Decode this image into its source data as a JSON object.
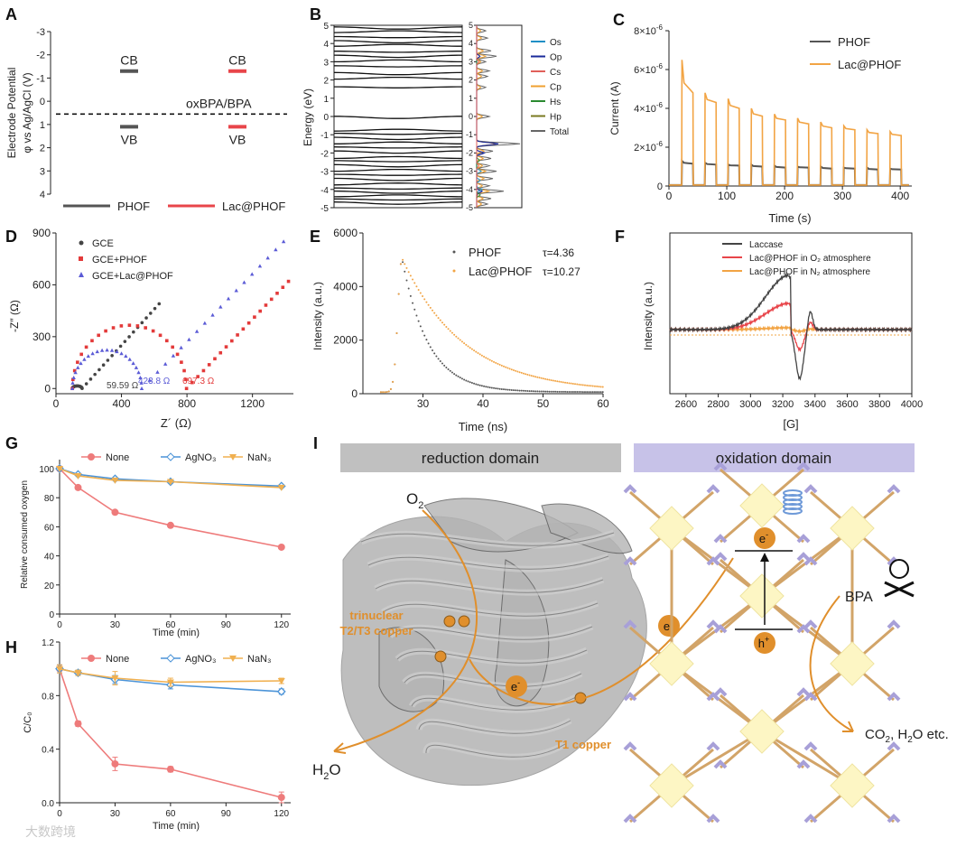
{
  "colors": {
    "phof": "#555555",
    "lac_phof": "#e8454a",
    "lac_orange": "#f2a444",
    "gce_blue": "#5b5bd6",
    "gce_black": "#444444",
    "gce_red": "#e33a3a",
    "os": "#1f8fc6",
    "op": "#1a2a9a",
    "cs": "#e0605a",
    "cp": "#f0a030",
    "hs": "#2a8a30",
    "hp": "#7a7a20",
    "total": "#666666",
    "g_none": "#ee7b7b",
    "g_agno3": "#4c94d8",
    "g_nan3": "#f0b050",
    "reduction_bar": "#c0c0c0",
    "oxidation_bar": "#c7c2e8",
    "copper": "#e08f2c",
    "electron": "#e08f2c",
    "node_fill": "#fdf6c4",
    "linker": "#d2a468",
    "cap": "#a8a0d8"
  },
  "chart_data": [
    {
      "panel": "A",
      "type": "scatter",
      "ylabel": "Electrode Potential φ vs Ag/AgCl (V)",
      "ylabel_line1": "Electrode Potential",
      "ylabel_line2": "φ vs Ag/AgCl (V)",
      "ylim": [
        4,
        -3
      ],
      "yticks": [
        "-3",
        "-2",
        "-1",
        "0",
        "1",
        "2",
        "3",
        "4"
      ],
      "series": [
        {
          "name": "PHOF",
          "cb": -1.3,
          "vb": 1.1
        },
        {
          "name": "Lac@PHOF",
          "cb": -1.3,
          "vb": 1.1
        }
      ],
      "cb_label": "CB",
      "vb_label": "VB",
      "reference_label": "oxBPA/BPA",
      "reference_value": 0.55,
      "legend": [
        "PHOF",
        "Lac@PHOF"
      ]
    },
    {
      "panel": "B",
      "type": "line",
      "ylabel": "Energy (eV)",
      "ylim": [
        -5,
        5
      ],
      "yticks": [
        "5",
        "4",
        "3",
        "2",
        "1",
        "0",
        "-1",
        "-2",
        "-3",
        "-4",
        "-5"
      ],
      "bands": [
        4.85,
        4.65,
        4.35,
        4.1,
        3.9,
        3.55,
        3.3,
        3.05,
        2.75,
        2.35,
        2.1,
        1.6,
        -0.05,
        -0.75,
        -0.95,
        -1.2,
        -1.45,
        -1.7,
        -1.95,
        -2.25,
        -2.45,
        -2.7,
        -2.95,
        -3.2,
        -3.45,
        -3.7,
        -3.95,
        -4.15,
        -4.35,
        -4.55,
        -4.75
      ],
      "dos_legend": [
        "Os",
        "Op",
        "Cs",
        "Cp",
        "Hs",
        "Hp",
        "Total"
      ],
      "dos_tick_labels": [
        "5",
        "4",
        "3",
        "2",
        "1",
        "0",
        "-1",
        "-2",
        "-3",
        "-4",
        "-5"
      ]
    },
    {
      "panel": "C",
      "type": "line",
      "xlabel": "Time (s)",
      "ylabel": "Current (A)",
      "xlim": [
        0,
        420
      ],
      "ylim": [
        0,
        8e-06
      ],
      "xticks": [
        "0",
        "100",
        "200",
        "300",
        "400"
      ],
      "ytick_mantissa": [
        "0",
        "2×10",
        "4×10",
        "6×10",
        "8×10"
      ],
      "ytick_exp": [
        "-6"
      ],
      "on_times": [
        22,
        62,
        102,
        142,
        182,
        222,
        262,
        302,
        342,
        382
      ],
      "on_duration": 20,
      "series": [
        {
          "name": "PHOF",
          "peaks": [
            1.3e-06,
            1.2e-06,
            1.1e-06,
            1.1e-06,
            1.05e-06,
            1e-06,
            1e-06,
            9.5e-07,
            9.5e-07,
            9e-07
          ],
          "plateau": [
            1.15e-06,
            1.1e-06,
            1.05e-06,
            1e-06,
            9.5e-07,
            9.5e-07,
            9e-07,
            9e-07,
            8.5e-07,
            8.5e-07
          ]
        },
        {
          "name": "Lac@PHOF",
          "peaks": [
            6.5e-06,
            4.8e-06,
            4.5e-06,
            4e-06,
            3.7e-06,
            3.5e-06,
            3.3e-06,
            3.1e-06,
            2.9e-06,
            2.8e-06
          ],
          "plateau": [
            4.8e-06,
            4.3e-06,
            4e-06,
            3.6e-06,
            3.4e-06,
            3.2e-06,
            3e-06,
            2.9e-06,
            2.7e-06,
            2.6e-06
          ]
        }
      ]
    },
    {
      "panel": "D",
      "type": "scatter",
      "xlabel": "Z´ (Ω)",
      "ylabel": "-Z″ (Ω)",
      "xlim": [
        0,
        1450
      ],
      "ylim": [
        -30,
        900
      ],
      "xticks": [
        "0",
        "400",
        "800",
        "1200"
      ],
      "yticks": [
        "0",
        "300",
        "600",
        "900"
      ],
      "series": [
        {
          "name": "GCE",
          "r_ct": 59.59,
          "x0": 100,
          "tail_to": [
            630,
            490
          ]
        },
        {
          "name": "GCE+PHOF",
          "r_ct": 697.3,
          "x0": 100,
          "tail_to": [
            1420,
            620
          ]
        },
        {
          "name": "GCE+Lac@PHOF",
          "r_ct": 423.8,
          "x0": 100,
          "tail_to": [
            1390,
            850
          ]
        }
      ],
      "annotations": [
        "59.59 Ω",
        "423.8 Ω",
        "697.3 Ω"
      ]
    },
    {
      "panel": "E",
      "type": "scatter",
      "xlabel": "Time (ns)",
      "ylabel": "Intensity (a.u.)",
      "xlim": [
        20,
        60
      ],
      "ylim": [
        0,
        6000
      ],
      "xticks": [
        "30",
        "40",
        "50",
        "60"
      ],
      "yticks": [
        "0",
        "2000",
        "4000",
        "6000"
      ],
      "series": [
        {
          "name": "PHOF",
          "tau": 4.36,
          "peak": 5000,
          "t_peak": 26.5
        },
        {
          "name": "Lac@PHOF",
          "tau": 10.27,
          "peak": 5000,
          "t_peak": 26.5
        }
      ],
      "tau_labels": [
        "τ=4.36",
        "τ=10.27"
      ]
    },
    {
      "panel": "F",
      "type": "line",
      "xlabel": "[G]",
      "ylabel": "Intensity (a.u.)",
      "xlim": [
        2500,
        4000
      ],
      "xticks": [
        "2600",
        "2800",
        "3000",
        "3200",
        "3400",
        "3600",
        "3800",
        "4000"
      ],
      "series": [
        {
          "name": "Laccase"
        },
        {
          "name": "Lac@PHOF in O₂ atmosphere"
        },
        {
          "name": "Lac@PHOF in N₂ atmosphere"
        }
      ]
    },
    {
      "panel": "G",
      "type": "line",
      "xlabel": "Time (min)",
      "ylabel": "Relative consumed oxygen",
      "x": [
        0,
        10,
        30,
        60,
        120
      ],
      "xlim": [
        0,
        125
      ],
      "ylim": [
        0,
        100
      ],
      "xticks": [
        "0",
        "30",
        "60",
        "90",
        "120"
      ],
      "yticks": [
        "0",
        "20",
        "40",
        "60",
        "80",
        "100"
      ],
      "series": [
        {
          "name": "None",
          "values": [
            100,
            87,
            70,
            61,
            46
          ]
        },
        {
          "name": "AgNO₃",
          "values": [
            100,
            96,
            93,
            91,
            88
          ]
        },
        {
          "name": "NaN₃",
          "values": [
            100,
            95,
            92,
            91,
            87
          ]
        }
      ]
    },
    {
      "panel": "H",
      "type": "line",
      "xlabel": "Time (min)",
      "ylabel": "C/C₀",
      "x": [
        0,
        10,
        30,
        60,
        120
      ],
      "xlim": [
        0,
        125
      ],
      "ylim": [
        0,
        1.2
      ],
      "xticks": [
        "0",
        "30",
        "60",
        "90",
        "120"
      ],
      "yticks": [
        "0.0",
        "0.4",
        "0.8",
        "1.2"
      ],
      "series": [
        {
          "name": "None",
          "values": [
            1.0,
            0.59,
            0.29,
            0.25,
            0.04
          ],
          "err": [
            0.03,
            0.02,
            0.05,
            0.02,
            0.04
          ]
        },
        {
          "name": "AgNO₃",
          "values": [
            1.0,
            0.97,
            0.92,
            0.88,
            0.83
          ],
          "err": [
            0.03,
            0.02,
            0.03,
            0.03,
            0.02
          ]
        },
        {
          "name": "NaN₃",
          "values": [
            1.0,
            0.97,
            0.93,
            0.9,
            0.91
          ],
          "err": [
            0.03,
            0.02,
            0.05,
            0.03,
            0.02
          ]
        }
      ]
    }
  ],
  "panels": {
    "labels": [
      "A",
      "B",
      "C",
      "D",
      "E",
      "F",
      "G",
      "H",
      "I"
    ]
  },
  "scheme": {
    "reduction_title": "reduction domain",
    "oxidation_title": "oxidation domain",
    "o2": "O",
    "o2_sub": "2",
    "h2o_h": "H",
    "h2o_sub": "2",
    "h2o_o": "O",
    "trinuclear_line1": "trinuclear",
    "trinuclear_line2": "T2/T3 copper",
    "t1_copper": "T1 copper",
    "electron": "e",
    "electron_sup": "-",
    "hole": "h",
    "hole_sup": "+",
    "bpa": "BPA",
    "products_pre": "CO",
    "products_sub": "2",
    "products_post": ", H",
    "products_sub2": "2",
    "products_end": "O etc."
  },
  "watermark": "大数跨境"
}
